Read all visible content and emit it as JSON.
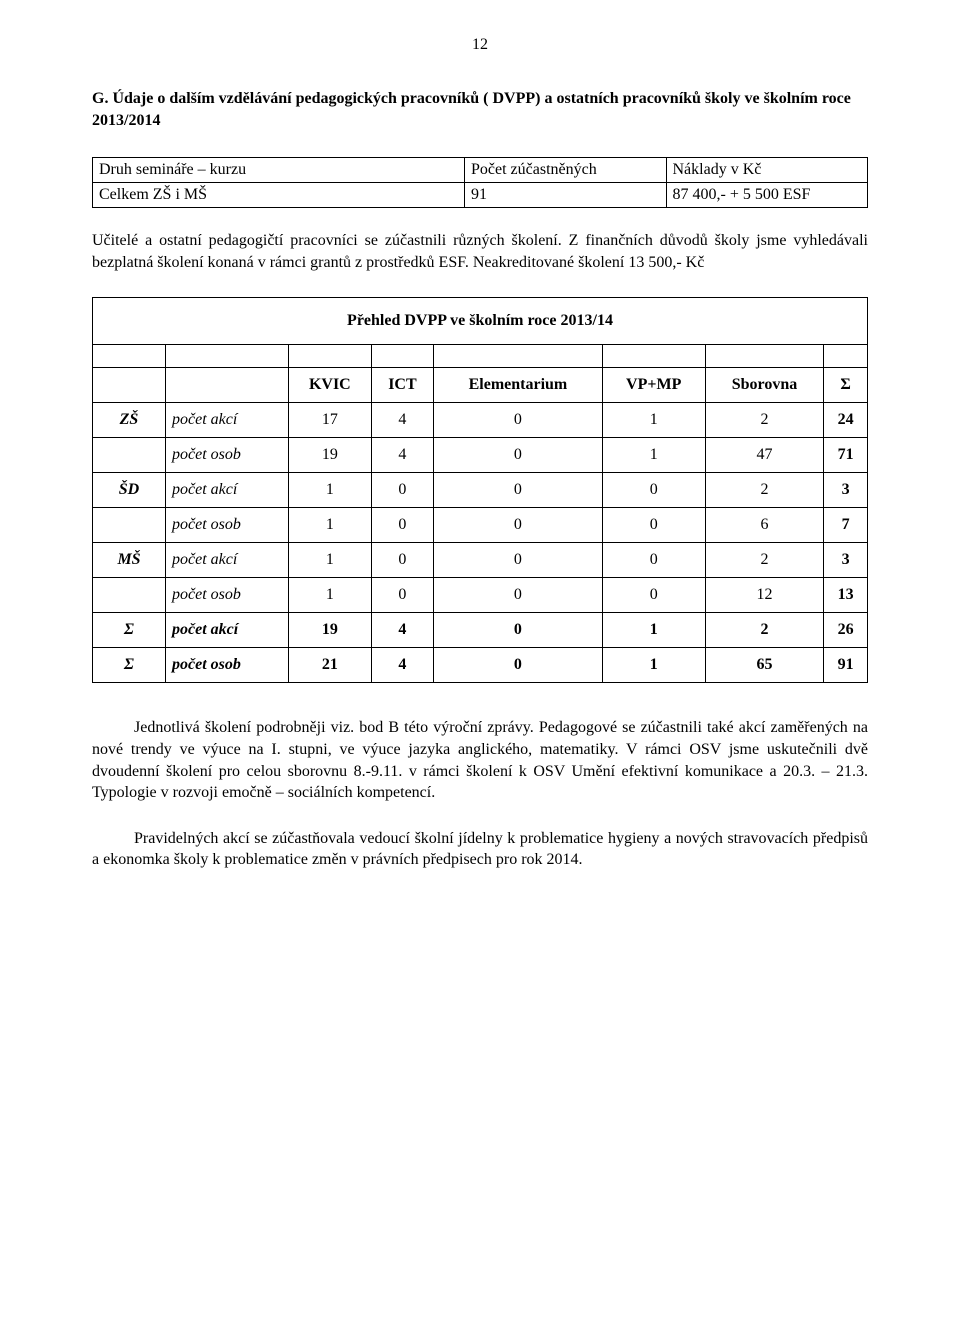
{
  "page_number": "12",
  "heading": "G. Údaje o dalším vzdělávání pedagogických pracovníků ( DVPP) a ostatních pracovníků školy ve školním roce 2013/2014",
  "table1": {
    "header": [
      "Druh semináře – kurzu",
      "Počet zúčastněných",
      "Náklady v Kč"
    ],
    "row": [
      "Celkem ZŠ i MŠ",
      "91",
      "87 400,- + 5 500 ESF"
    ]
  },
  "para1": "Učitelé a ostatní pedagogičtí pracovníci se zúčastnili různých školení. Z finančních důvodů školy jsme vyhledávali bezplatná školení konaná v rámci grantů z prostředků ESF. Neakreditované školení 13 500,- Kč",
  "table2": {
    "title": "Přehled DVPP ve školním roce 2013/14",
    "columns": [
      "KVIC",
      "ICT",
      "Elementarium",
      "VP+MP",
      "Sborovna",
      "Σ"
    ],
    "rows": [
      {
        "group": "ZŠ",
        "metric": "počet akcí",
        "vals": [
          "17",
          "4",
          "0",
          "1",
          "2",
          "24"
        ],
        "bold_last": true
      },
      {
        "group": "",
        "metric": "počet osob",
        "vals": [
          "19",
          "4",
          "0",
          "1",
          "47",
          "71"
        ],
        "bold_last": true
      },
      {
        "group": "ŠD",
        "metric": "počet akcí",
        "vals": [
          "1",
          "0",
          "0",
          "0",
          "2",
          "3"
        ],
        "bold_last": true
      },
      {
        "group": "",
        "metric": "počet osob",
        "vals": [
          "1",
          "0",
          "0",
          "0",
          "6",
          "7"
        ],
        "bold_last": true
      },
      {
        "group": "MŠ",
        "metric": "počet akcí",
        "vals": [
          "1",
          "0",
          "0",
          "0",
          "2",
          "3"
        ],
        "bold_last": true
      },
      {
        "group": "",
        "metric": "počet osob",
        "vals": [
          "1",
          "0",
          "0",
          "0",
          "12",
          "13"
        ],
        "bold_last": true
      },
      {
        "group": "Σ",
        "metric": "počet akcí",
        "vals": [
          "19",
          "4",
          "0",
          "1",
          "2",
          "26"
        ],
        "bold_row": true
      },
      {
        "group": "Σ",
        "metric": "počet osob",
        "vals": [
          "21",
          "4",
          "0",
          "1",
          "65",
          "91"
        ],
        "bold_row": true
      }
    ]
  },
  "para2": "Jednotlivá školení podrobněji viz. bod B této výroční zprávy. Pedagogové se zúčastnili také akcí zaměřených na nové trendy ve výuce na I. stupni, ve výuce jazyka anglického, matematiky. V rámci OSV jsme uskutečnili dvě dvoudenní školení pro celou sborovnu 8.-9.11. v rámci školení k OSV Umění efektivní komunikace a 20.3. – 21.3. Typologie v rozvoji emočně – sociálních kompetencí.",
  "para3": "Pravidelných akcí se zúčastňovala vedoucí školní jídelny k problematice hygieny a nových stravovacích předpisů a ekonomka školy k problematice změn v právních předpisech pro rok 2014."
}
